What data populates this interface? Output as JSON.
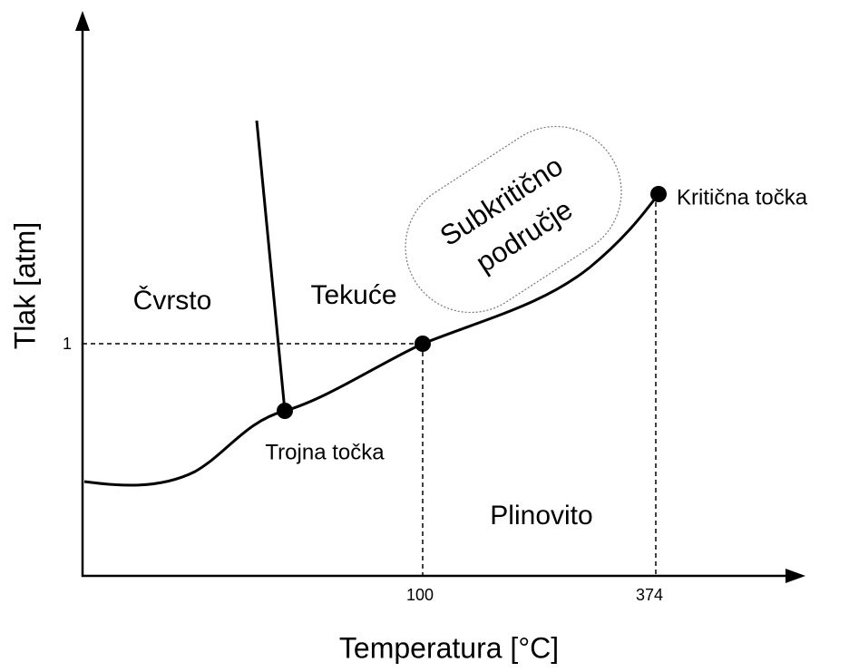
{
  "axes": {
    "x_label": "Temperatura [°C]",
    "y_label": "Tlak [atm]"
  },
  "ticks": {
    "x": [
      "100",
      "374"
    ],
    "y": [
      "1"
    ]
  },
  "regions": [
    "Čvrsto",
    "Tekuće",
    "Plinovito"
  ],
  "points": [
    "Trojna točka",
    "Kritična točka"
  ],
  "bubble": [
    "Subkritično",
    "područje"
  ]
}
